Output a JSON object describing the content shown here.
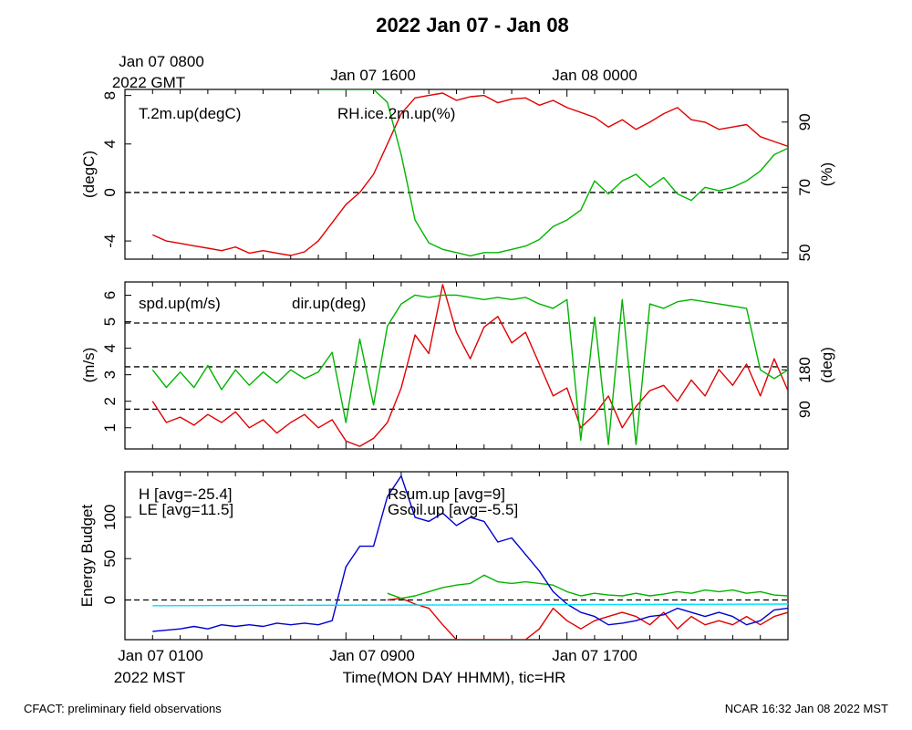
{
  "title": "2022 Jan 07 - Jan 08",
  "top_time_labels": [
    {
      "line1": "Jan 07 0800",
      "line2": "2022 GMT"
    },
    {
      "line1": "Jan 07 1600",
      "line2": ""
    },
    {
      "line1": "Jan 08 0000",
      "line2": ""
    }
  ],
  "bottom_time_labels": [
    {
      "line1": "Jan 07 0100",
      "line2": "2022 MST"
    },
    {
      "line1": "Jan 07 0900",
      "line2": ""
    },
    {
      "line1": "Jan 07 1700",
      "line2": ""
    }
  ],
  "xlabel": "Time(MON DAY HHMM), tic=HR",
  "footer_left": "CFACT: preliminary field observations",
  "footer_right": "NCAR 16:32 Jan 08 2022 MST",
  "colors": {
    "red": "#e00000",
    "green": "#00b400",
    "blue": "#0000d0",
    "cyan": "#00e0ff"
  },
  "chart_data": [
    {
      "type": "line",
      "panel": "temperature-humidity",
      "xlim": [
        0,
        24
      ],
      "ylabel": "(degC)",
      "ylim": [
        -5.5,
        8.5
      ],
      "yticks": [
        -4,
        0,
        4,
        8
      ],
      "ylabel_right": "(%)",
      "ylim_right": [
        48,
        100
      ],
      "yticks_right": [
        50,
        70,
        90
      ],
      "reference_lines": [
        0
      ],
      "series": [
        {
          "name": "T.2m.up(degC)",
          "color": "#e00000",
          "axis": "left",
          "x": [
            1.0,
            1.5,
            2.0,
            2.5,
            3.0,
            3.5,
            4.0,
            4.5,
            5.0,
            5.5,
            6.0,
            6.5,
            7.0,
            7.5,
            8.0,
            8.5,
            9.0,
            9.5,
            10.0,
            10.5,
            11.0,
            11.5,
            12.0,
            12.5,
            13.0,
            13.5,
            14.0,
            14.5,
            15.0,
            15.5,
            16.0,
            16.5,
            17.0,
            17.5,
            18.0,
            18.5,
            19.0,
            19.5,
            20.0,
            20.5,
            21.0,
            21.5,
            22.0,
            22.5,
            23.0,
            23.5,
            24.0
          ],
          "y": [
            -3.5,
            -4.0,
            -4.2,
            -4.4,
            -4.6,
            -4.8,
            -4.5,
            -5.0,
            -4.8,
            -5.0,
            -5.2,
            -4.9,
            -4.0,
            -2.5,
            -1.0,
            0.0,
            1.5,
            4.0,
            6.5,
            7.8,
            8.0,
            8.2,
            7.6,
            7.9,
            8.0,
            7.4,
            7.7,
            7.8,
            7.2,
            7.6,
            7.0,
            6.6,
            6.2,
            5.4,
            6.0,
            5.2,
            5.8,
            6.5,
            7.0,
            6.0,
            5.8,
            5.2,
            5.4,
            5.6,
            4.6,
            4.2,
            3.8
          ]
        },
        {
          "name": "RH.ice.2m.up(%)",
          "color": "#00b400",
          "axis": "right",
          "x": [
            7.0,
            7.5,
            8.0,
            8.5,
            9.0,
            9.5,
            10.0,
            10.5,
            11.0,
            11.5,
            12.0,
            12.5,
            13.0,
            13.5,
            14.0,
            14.5,
            15.0,
            15.5,
            16.0,
            16.5,
            17.0,
            17.5,
            18.0,
            18.5,
            19.0,
            19.5,
            20.0,
            20.5,
            21.0,
            21.5,
            22.0,
            22.5,
            23.0,
            23.5,
            24.0
          ],
          "y": [
            100,
            100,
            100,
            100,
            100,
            96,
            80,
            60,
            53,
            51,
            50,
            49,
            50,
            50,
            51,
            52,
            54,
            58,
            60,
            63,
            72,
            68,
            72,
            74,
            70,
            73,
            68,
            66,
            70,
            69,
            70,
            72,
            75,
            80,
            82
          ]
        }
      ]
    },
    {
      "type": "line",
      "panel": "wind",
      "xlim": [
        0,
        24
      ],
      "ylabel": "(m/s)",
      "ylim": [
        0.2,
        6.5
      ],
      "yticks": [
        1,
        2,
        3,
        4,
        5,
        6
      ],
      "ylabel_right": "(deg)",
      "ylim_right": [
        0,
        380
      ],
      "yticks_right": [
        90,
        180
      ],
      "reference_lines": [
        1.7,
        3.3,
        4.95
      ],
      "series": [
        {
          "name": "spd.up(m/s)",
          "color": "#e00000",
          "axis": "left",
          "x": [
            1.0,
            1.5,
            2.0,
            2.5,
            3.0,
            3.5,
            4.0,
            4.5,
            5.0,
            5.5,
            6.0,
            6.5,
            7.0,
            7.5,
            8.0,
            8.5,
            9.0,
            9.5,
            10.0,
            10.5,
            11.0,
            11.5,
            12.0,
            12.5,
            13.0,
            13.5,
            14.0,
            14.5,
            15.0,
            15.5,
            16.0,
            16.5,
            17.0,
            17.5,
            18.0,
            18.5,
            19.0,
            19.5,
            20.0,
            20.5,
            21.0,
            21.5,
            22.0,
            22.5,
            23.0,
            23.5,
            24.0
          ],
          "y": [
            2.0,
            1.2,
            1.4,
            1.1,
            1.5,
            1.2,
            1.6,
            1.0,
            1.3,
            0.8,
            1.2,
            1.5,
            1.0,
            1.3,
            0.5,
            0.3,
            0.6,
            1.2,
            2.5,
            4.5,
            3.8,
            6.4,
            4.6,
            3.6,
            4.8,
            5.2,
            4.2,
            4.6,
            3.4,
            2.2,
            2.5,
            1.0,
            1.5,
            2.2,
            1.0,
            1.8,
            2.4,
            2.6,
            2.0,
            2.8,
            2.2,
            3.2,
            2.6,
            3.4,
            2.2,
            3.6,
            2.4
          ]
        },
        {
          "name": "dir.up(deg)",
          "color": "#00b400",
          "axis": "right",
          "x": [
            1.0,
            1.5,
            2.0,
            2.5,
            3.0,
            3.5,
            4.0,
            4.5,
            5.0,
            5.5,
            6.0,
            6.5,
            7.0,
            7.5,
            8.0,
            8.5,
            9.0,
            9.5,
            10.0,
            10.5,
            11.0,
            11.5,
            12.0,
            12.5,
            13.0,
            13.5,
            14.0,
            14.5,
            15.0,
            15.5,
            16.0,
            16.5,
            17.0,
            17.5,
            18.0,
            18.5,
            19.0,
            19.5,
            20.0,
            20.5,
            21.0,
            21.5,
            22.0,
            22.5,
            23.0,
            23.5,
            24.0
          ],
          "y": [
            180,
            140,
            175,
            140,
            190,
            135,
            180,
            145,
            175,
            150,
            180,
            160,
            175,
            220,
            60,
            250,
            100,
            280,
            330,
            350,
            345,
            350,
            350,
            345,
            340,
            345,
            340,
            345,
            330,
            320,
            340,
            20,
            300,
            10,
            340,
            10,
            330,
            320,
            335,
            340,
            335,
            330,
            325,
            320,
            180,
            160,
            180
          ]
        }
      ]
    },
    {
      "type": "line",
      "panel": "energy-budget",
      "xlim": [
        0,
        24
      ],
      "ylabel": "Energy Budget",
      "ylim": [
        -48,
        155
      ],
      "yticks": [
        0,
        50,
        100
      ],
      "reference_lines": [
        0
      ],
      "series": [
        {
          "name": "H [avg=-25.4]",
          "color": "#e00000",
          "x": [
            9.5,
            10.0,
            10.5,
            11.0,
            11.5,
            12.0,
            14.5,
            15.0,
            15.5,
            16.0,
            16.5,
            17.0,
            17.5,
            18.0,
            18.5,
            19.0,
            19.5,
            20.0,
            20.5,
            21.0,
            21.5,
            22.0,
            22.5,
            23.0,
            23.5,
            24.0
          ],
          "y": [
            0,
            2,
            -5,
            -10,
            -30,
            -48,
            -48,
            -35,
            -10,
            -25,
            -35,
            -25,
            -20,
            -15,
            -20,
            -30,
            -15,
            -35,
            -20,
            -30,
            -25,
            -30,
            -20,
            -30,
            -20,
            -15
          ]
        },
        {
          "name": "LE [avg=11.5]",
          "color": "#00b400",
          "x": [
            9.5,
            10.0,
            10.5,
            11.0,
            11.5,
            12.0,
            12.5,
            13.0,
            13.5,
            14.0,
            14.5,
            15.0,
            15.5,
            16.0,
            16.5,
            17.0,
            17.5,
            18.0,
            18.5,
            19.0,
            19.5,
            20.0,
            20.5,
            21.0,
            21.5,
            22.0,
            22.5,
            23.0,
            23.5,
            24.0
          ],
          "y": [
            8,
            2,
            5,
            10,
            15,
            18,
            20,
            30,
            22,
            20,
            22,
            20,
            18,
            10,
            5,
            8,
            6,
            5,
            8,
            5,
            7,
            10,
            8,
            12,
            10,
            12,
            8,
            10,
            6,
            5
          ]
        },
        {
          "name": "Rsum.up [avg=9]",
          "color": "#0000d0",
          "x": [
            1.0,
            2.0,
            2.5,
            3.0,
            3.5,
            4.0,
            4.5,
            5.0,
            5.5,
            6.0,
            6.5,
            7.0,
            7.5,
            8.0,
            8.5,
            9.0,
            9.5,
            10.0,
            10.5,
            11.0,
            11.5,
            12.0,
            12.5,
            13.0,
            13.5,
            14.0,
            14.5,
            15.0,
            15.5,
            16.0,
            16.5,
            17.0,
            17.5,
            18.0,
            18.5,
            19.0,
            19.5,
            20.0,
            20.5,
            21.0,
            21.5,
            22.0,
            22.5,
            23.0,
            23.5,
            24.0
          ],
          "y": [
            -38,
            -35,
            -32,
            -35,
            -30,
            -32,
            -30,
            -32,
            -28,
            -30,
            -28,
            -30,
            -25,
            40,
            65,
            65,
            125,
            150,
            100,
            95,
            105,
            90,
            100,
            95,
            70,
            75,
            55,
            35,
            10,
            -5,
            -15,
            -20,
            -30,
            -28,
            -25,
            -20,
            -18,
            -10,
            -15,
            -20,
            -15,
            -20,
            -30,
            -25,
            -12,
            -10
          ]
        },
        {
          "name": "Gsoil.up [avg=-5.5]",
          "color": "#00e0ff",
          "x": [
            1.0,
            24.0
          ],
          "y": [
            -7,
            -5
          ]
        }
      ]
    }
  ]
}
